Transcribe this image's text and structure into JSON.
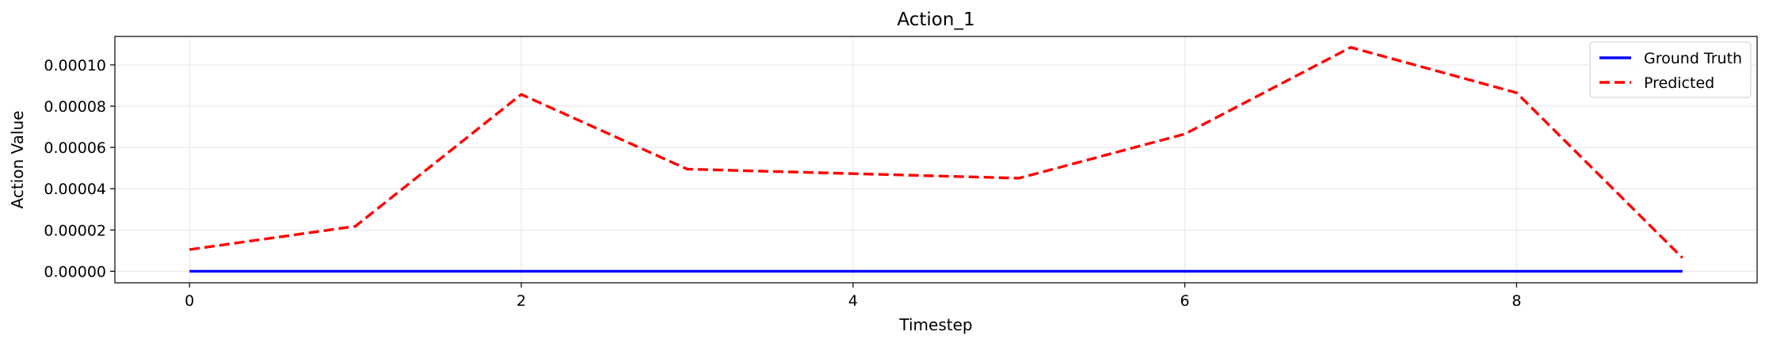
{
  "chart_data": {
    "type": "line",
    "title": "Action_1",
    "xlabel": "Timestep",
    "ylabel": "Action Value",
    "xlim": [
      -0.45,
      9.45
    ],
    "ylim": [
      -5.6e-06,
      0.0001138
    ],
    "xticks": [
      0,
      2,
      4,
      6,
      8
    ],
    "xtick_labels": [
      "0",
      "2",
      "4",
      "6",
      "8"
    ],
    "yticks": [
      0,
      2e-05,
      4e-05,
      6e-05,
      8e-05,
      0.0001
    ],
    "ytick_labels": [
      "0.00000",
      "0.00002",
      "0.00004",
      "0.00006",
      "0.00008",
      "0.00010"
    ],
    "grid": true,
    "legend_position": "top-right",
    "x": [
      0,
      1,
      2,
      3,
      4,
      5,
      6,
      7,
      8,
      9
    ],
    "series": [
      {
        "name": "Ground Truth",
        "color": "#0000ff",
        "style": "solid",
        "values": [
          0,
          0,
          0,
          0,
          0,
          0,
          0,
          0,
          0,
          0
        ]
      },
      {
        "name": "Predicted",
        "color": "#ff0000",
        "style": "dashed",
        "values": [
          1.05e-05,
          2.18e-05,
          8.57e-05,
          4.95e-05,
          4.73e-05,
          4.51e-05,
          6.65e-05,
          0.0001085,
          8.65e-05,
          6.5e-06
        ]
      }
    ]
  }
}
